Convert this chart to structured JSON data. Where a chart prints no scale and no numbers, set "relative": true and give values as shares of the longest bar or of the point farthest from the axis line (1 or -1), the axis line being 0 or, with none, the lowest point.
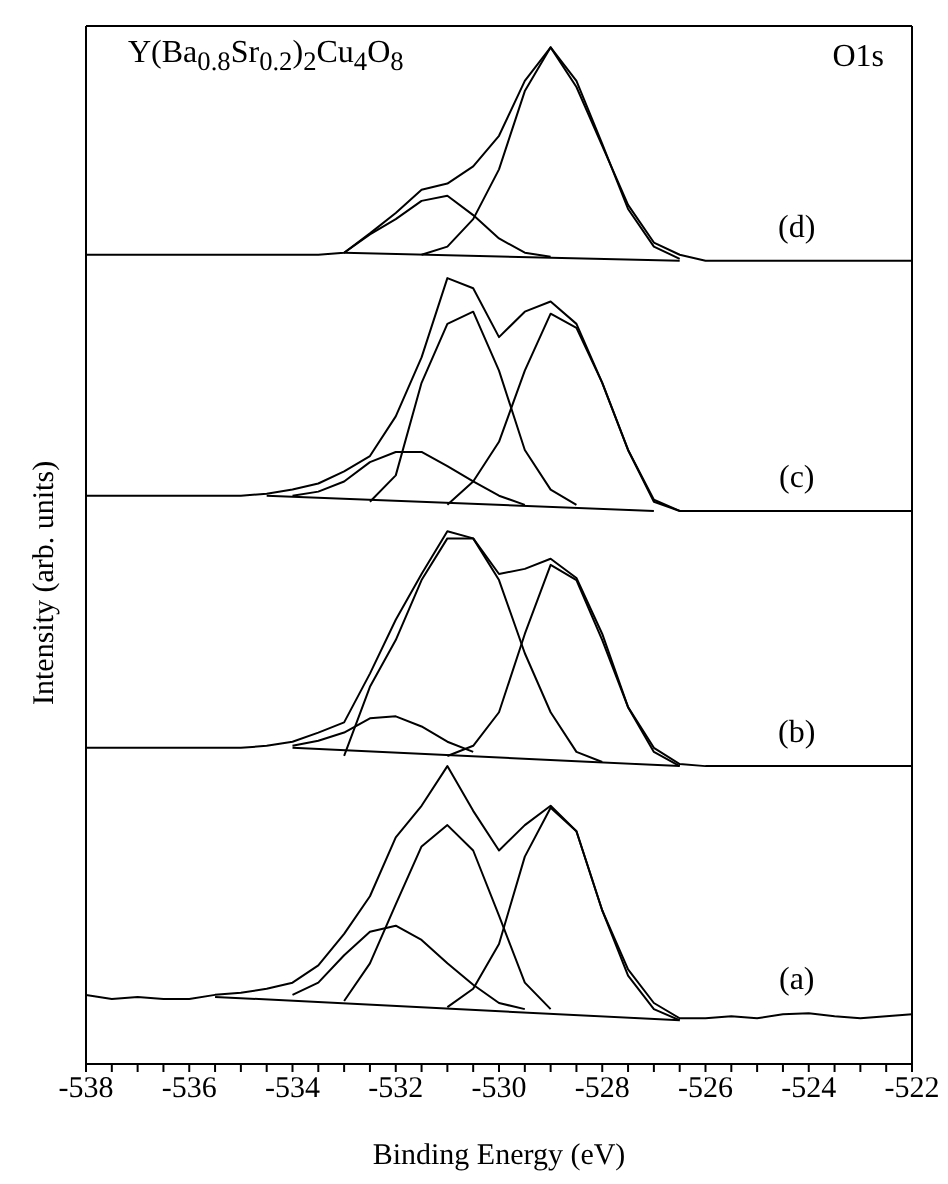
{
  "chart_data": {
    "type": "line",
    "title": "Y(Ba$_{0.8}$Sr$_{0.2}$)$_{2}$Cu$_{4}$O$_{8}$",
    "xlabel": "Binding Energy (eV)",
    "ylabel": "Intensity (arb. units)",
    "relative": true,
    "legend": false,
    "marker": "none",
    "line_style": "solid",
    "xlim": [
      -538,
      -522
    ],
    "xticks": [
      -538,
      {
        "value": -537.5,
        "label": null
      },
      {
        "value": -537,
        "label": null
      },
      {
        "value": -536.5,
        "label": null
      },
      -536,
      {
        "value": -535.5,
        "label": null
      },
      {
        "value": -535,
        "label": null
      },
      {
        "value": -534.5,
        "label": null
      },
      -534,
      {
        "value": -533.5,
        "label": null
      },
      {
        "value": -533,
        "label": null
      },
      {
        "value": -532.5,
        "label": null
      },
      -532,
      {
        "value": -531.5,
        "label": null
      },
      {
        "value": -531,
        "label": null
      },
      {
        "value": -530.5,
        "label": null
      },
      -530,
      {
        "value": -529.5,
        "label": null
      },
      {
        "value": -529,
        "label": null
      },
      {
        "value": -528.5,
        "label": null
      },
      -528,
      {
        "value": -527.5,
        "label": null
      },
      {
        "value": -527,
        "label": null
      },
      {
        "value": -526.5,
        "label": null
      },
      -526,
      {
        "value": -525.5,
        "label": null
      },
      {
        "value": -525,
        "label": null
      },
      {
        "value": -524.5,
        "label": null
      },
      -524,
      {
        "value": -523.5,
        "label": null
      },
      {
        "value": -523,
        "label": null
      },
      {
        "value": -522.5,
        "label": null
      },
      -522
    ],
    "x": [
      -538,
      -537.5,
      -537,
      -536.5,
      -536,
      -535.5,
      -535,
      -534.5,
      -534,
      -533.5,
      -533,
      -532.5,
      -532,
      -531.5,
      -531,
      -530.5,
      -530,
      -529.5,
      -529,
      -528.5,
      -528,
      -527.5,
      -527,
      -526.5,
      -526,
      -525.5,
      -525,
      -524.5,
      -524,
      -523.5,
      -523,
      -522.5,
      -522
    ],
    "series": [
      {
        "name": "(d)",
        "color": "#000000",
        "values": [
          0.796,
          0.796,
          0.796,
          0.796,
          0.796,
          0.796,
          0.796,
          0.796,
          0.796,
          0.796,
          0.798,
          0.817,
          0.837,
          0.86,
          0.866,
          0.883,
          0.913,
          0.967,
          1.0,
          0.961,
          0.903,
          0.845,
          0.808,
          0.796,
          0.79,
          0.79,
          0.79,
          0.79,
          0.79,
          0.79,
          0.79,
          0.79,
          0.79
        ]
      },
      {
        "color": "#000000",
        "x": [
          -533,
          -532.5,
          -532,
          -531.5,
          -531,
          -530.5,
          -530,
          -529.5,
          -529
        ],
        "values": [
          0.798,
          0.816,
          0.831,
          0.849,
          0.854,
          0.835,
          0.812,
          0.798,
          0.794
        ]
      },
      {
        "color": "#000000",
        "x": [
          -531.5,
          -531,
          -530.5,
          -530,
          -529.5,
          -529,
          -528.5,
          -528,
          -527.5,
          -527,
          -526.5
        ],
        "values": [
          0.796,
          0.804,
          0.831,
          0.88,
          0.957,
          1.0,
          0.967,
          0.905,
          0.841,
          0.804,
          0.792
        ]
      },
      {
        "color": "#000000",
        "x": [
          -533,
          -526.5
        ],
        "values": [
          0.798,
          0.79
        ]
      },
      {
        "name": "(c)",
        "color": "#000000",
        "values": [
          0.559,
          0.559,
          0.559,
          0.559,
          0.559,
          0.559,
          0.559,
          0.561,
          0.565,
          0.571,
          0.583,
          0.598,
          0.637,
          0.695,
          0.773,
          0.763,
          0.715,
          0.74,
          0.75,
          0.728,
          0.67,
          0.604,
          0.553,
          0.544,
          0.544,
          0.544,
          0.544,
          0.544,
          0.544,
          0.544,
          0.544,
          0.544,
          0.544
        ]
      },
      {
        "color": "#000000",
        "x": [
          -534,
          -533.5,
          -533,
          -532.5,
          -532,
          -531.5,
          -531,
          -530.5,
          -530,
          -529.5
        ],
        "values": [
          0.559,
          0.563,
          0.573,
          0.592,
          0.602,
          0.602,
          0.588,
          0.573,
          0.559,
          0.55
        ]
      },
      {
        "color": "#000000",
        "x": [
          -532.5,
          -532,
          -531.5,
          -531,
          -530.5,
          -530,
          -529.5,
          -529,
          -528.5
        ],
        "values": [
          0.553,
          0.579,
          0.67,
          0.728,
          0.74,
          0.682,
          0.604,
          0.565,
          0.55
        ]
      },
      {
        "color": "#000000",
        "x": [
          -531,
          -530.5,
          -530,
          -529.5,
          -529,
          -528.5,
          -528,
          -527.5,
          -527,
          -526.5
        ],
        "values": [
          0.55,
          0.573,
          0.612,
          0.682,
          0.738,
          0.724,
          0.67,
          0.604,
          0.555,
          0.544
        ]
      },
      {
        "color": "#000000",
        "x": [
          -534.5,
          -527
        ],
        "values": [
          0.559,
          0.544
        ]
      },
      {
        "name": "(b)",
        "color": "#000000",
        "values": [
          0.311,
          0.311,
          0.311,
          0.311,
          0.311,
          0.311,
          0.311,
          0.313,
          0.317,
          0.326,
          0.336,
          0.384,
          0.437,
          0.482,
          0.524,
          0.517,
          0.482,
          0.487,
          0.497,
          0.478,
          0.423,
          0.351,
          0.311,
          0.295,
          0.293,
          0.293,
          0.293,
          0.293,
          0.293,
          0.293,
          0.293,
          0.293,
          0.293
        ]
      },
      {
        "color": "#000000",
        "x": [
          -534,
          -533.5,
          -533,
          -532.5,
          -532,
          -531.5,
          -531,
          -530.5
        ],
        "values": [
          0.313,
          0.318,
          0.326,
          0.34,
          0.342,
          0.332,
          0.317,
          0.307
        ]
      },
      {
        "color": "#000000",
        "x": [
          -533,
          -532.5,
          -532,
          -531.5,
          -531,
          -530.5,
          -530,
          -529.5,
          -529,
          -528.5,
          -528
        ],
        "values": [
          0.303,
          0.371,
          0.417,
          0.476,
          0.517,
          0.517,
          0.476,
          0.404,
          0.346,
          0.307,
          0.297
        ]
      },
      {
        "color": "#000000",
        "x": [
          -531,
          -530.5,
          -530,
          -529.5,
          -529,
          -528.5,
          -528,
          -527.5,
          -527,
          -526.5
        ],
        "values": [
          0.303,
          0.313,
          0.346,
          0.423,
          0.491,
          0.476,
          0.417,
          0.351,
          0.307,
          0.293
        ]
      },
      {
        "color": "#000000",
        "x": [
          -534,
          -526.5
        ],
        "values": [
          0.311,
          0.293
        ]
      },
      {
        "name": "(a)",
        "color": "#000000",
        "values": [
          0.068,
          0.064,
          0.066,
          0.064,
          0.064,
          0.068,
          0.07,
          0.074,
          0.08,
          0.097,
          0.128,
          0.165,
          0.223,
          0.254,
          0.293,
          0.249,
          0.21,
          0.235,
          0.254,
          0.229,
          0.151,
          0.093,
          0.06,
          0.045,
          0.045,
          0.047,
          0.045,
          0.049,
          0.05,
          0.047,
          0.045,
          0.047,
          0.049
        ]
      },
      {
        "color": "#000000",
        "x": [
          -534,
          -533.5,
          -533,
          -532.5,
          -532,
          -531.5,
          -531,
          -530.5,
          -530,
          -529.5
        ],
        "values": [
          0.068,
          0.08,
          0.107,
          0.13,
          0.136,
          0.122,
          0.099,
          0.078,
          0.06,
          0.054
        ]
      },
      {
        "color": "#000000",
        "x": [
          -533,
          -532.5,
          -532,
          -531.5,
          -531,
          -530.5,
          -530,
          -529.5,
          -529
        ],
        "values": [
          0.062,
          0.099,
          0.157,
          0.214,
          0.235,
          0.21,
          0.146,
          0.08,
          0.054
        ]
      },
      {
        "color": "#000000",
        "x": [
          -531,
          -530.5,
          -530,
          -529.5,
          -529,
          -528.5,
          -528,
          -527.5,
          -527,
          -526.5
        ],
        "values": [
          0.056,
          0.074,
          0.118,
          0.204,
          0.252,
          0.229,
          0.151,
          0.087,
          0.054,
          0.043
        ]
      },
      {
        "color": "#000000",
        "x": [
          -535.5,
          -526.5
        ],
        "values": [
          0.066,
          0.043
        ]
      }
    ],
    "annotations": [
      "O1s"
    ]
  }
}
